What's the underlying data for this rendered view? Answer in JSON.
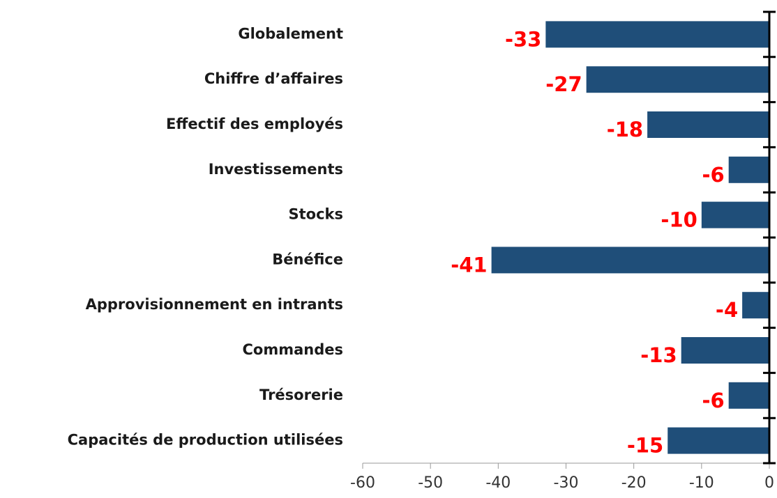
{
  "chart_data": {
    "type": "bar",
    "orientation": "horizontal",
    "categories": [
      "Globalement",
      "Chiffre d’affaires",
      "Effectif des employés",
      "Investissements",
      "Stocks",
      "Bénéfice",
      "Approvisionnement en intrants",
      "Commandes",
      "Trésorerie",
      "Capacités de production utilisées"
    ],
    "values": [
      -33,
      -27,
      -18,
      -6,
      -10,
      -41,
      -4,
      -13,
      -6,
      -15
    ],
    "color": "#1f4e79",
    "label_color": "#ff0000",
    "xlim": [
      -60,
      0
    ],
    "xticks": [
      -60,
      -50,
      -40,
      -30,
      -20,
      -10,
      0
    ]
  }
}
